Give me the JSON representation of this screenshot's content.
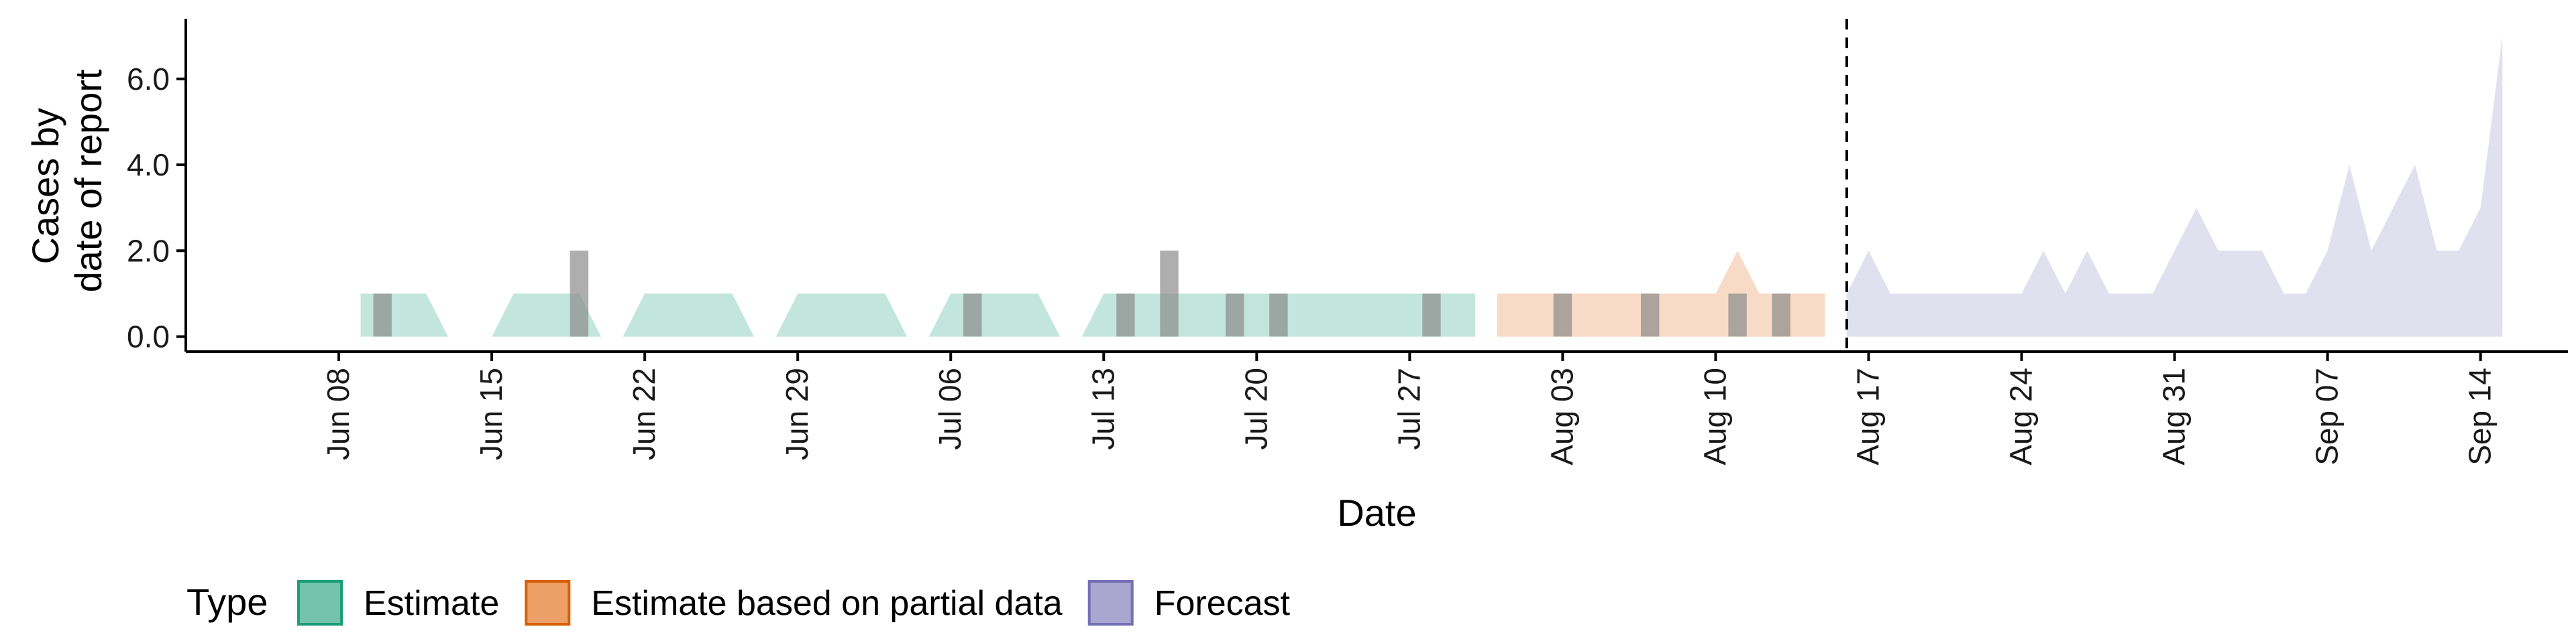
{
  "chart_data": {
    "type": "area",
    "xlabel": "Date",
    "ylabel_lines": [
      "Cases by",
      "date of report"
    ],
    "x_ticks": [
      "Jun 08",
      "Jun 15",
      "Jun 22",
      "Jun 29",
      "Jul 06",
      "Jul 13",
      "Jul 20",
      "Jul 27",
      "Aug 03",
      "Aug 10",
      "Aug 17",
      "Aug 24",
      "Aug 31",
      "Sep 07",
      "Sep 14"
    ],
    "x_range": [
      "2020-06-01",
      "2020-09-18"
    ],
    "y_ticks": [
      "0.0",
      "2.0",
      "4.0",
      "6.0"
    ],
    "ylim": [
      -0.35,
      7.4
    ],
    "forecast_start": "2020-08-16",
    "legend": {
      "title": "Type",
      "position": "bottom",
      "items": [
        {
          "label": "Estimate",
          "fill": "#74c4ac",
          "stroke": "#1b9e77"
        },
        {
          "label": "Estimate based on partial data",
          "fill": "#ec9f66",
          "stroke": "#d95f02"
        },
        {
          "label": "Forecast",
          "fill": "#a9a6d0",
          "stroke": "#7570b3"
        }
      ]
    },
    "series": [
      {
        "name": "Estimate",
        "color": "#b4e0d3",
        "points": [
          [
            "2020-06-09",
            0,
            1
          ],
          [
            "2020-06-10",
            0,
            1
          ],
          [
            "2020-06-11",
            0,
            1
          ],
          [
            "2020-06-12",
            0,
            1
          ],
          [
            "2020-06-13",
            0,
            0
          ],
          [
            "2020-06-14",
            0,
            0
          ],
          [
            "2020-06-15",
            0,
            0
          ],
          [
            "2020-06-16",
            0,
            1
          ],
          [
            "2020-06-17",
            0,
            1
          ],
          [
            "2020-06-18",
            0,
            1
          ],
          [
            "2020-06-19",
            0,
            1
          ],
          [
            "2020-06-20",
            0,
            0
          ],
          [
            "2020-06-21",
            0,
            0
          ],
          [
            "2020-06-22",
            0,
            1
          ],
          [
            "2020-06-23",
            0,
            1
          ],
          [
            "2020-06-24",
            0,
            1
          ],
          [
            "2020-06-25",
            0,
            1
          ],
          [
            "2020-06-26",
            0,
            1
          ],
          [
            "2020-06-27",
            0,
            0
          ],
          [
            "2020-06-28",
            0,
            0
          ],
          [
            "2020-06-29",
            0,
            1
          ],
          [
            "2020-06-30",
            0,
            1
          ],
          [
            "2020-07-01",
            0,
            1
          ],
          [
            "2020-07-02",
            0,
            1
          ],
          [
            "2020-07-03",
            0,
            1
          ],
          [
            "2020-07-04",
            0,
            0
          ],
          [
            "2020-07-05",
            0,
            0
          ],
          [
            "2020-07-06",
            0,
            1
          ],
          [
            "2020-07-07",
            0,
            1
          ],
          [
            "2020-07-08",
            0,
            1
          ],
          [
            "2020-07-09",
            0,
            1
          ],
          [
            "2020-07-10",
            0,
            1
          ],
          [
            "2020-07-11",
            0,
            0
          ],
          [
            "2020-07-12",
            0,
            0
          ],
          [
            "2020-07-13",
            0,
            1
          ],
          [
            "2020-07-14",
            0,
            1
          ],
          [
            "2020-07-15",
            0,
            1
          ],
          [
            "2020-07-16",
            0,
            1
          ],
          [
            "2020-07-17",
            0,
            1
          ],
          [
            "2020-07-18",
            0,
            1
          ],
          [
            "2020-07-19",
            0,
            1
          ],
          [
            "2020-07-20",
            0,
            1
          ],
          [
            "2020-07-21",
            0,
            1
          ],
          [
            "2020-07-22",
            0,
            1
          ],
          [
            "2020-07-23",
            0,
            1
          ],
          [
            "2020-07-24",
            0,
            1
          ],
          [
            "2020-07-25",
            0,
            1
          ],
          [
            "2020-07-26",
            0,
            1
          ],
          [
            "2020-07-27",
            0,
            1
          ],
          [
            "2020-07-28",
            0,
            1
          ],
          [
            "2020-07-29",
            0,
            1
          ],
          [
            "2020-07-30",
            0,
            1
          ]
        ]
      },
      {
        "name": "Estimate based on partial data",
        "color": "#f5d2b8",
        "points": [
          [
            "2020-07-31",
            0,
            1
          ],
          [
            "2020-08-01",
            0,
            1
          ],
          [
            "2020-08-02",
            0,
            1
          ],
          [
            "2020-08-03",
            0,
            1
          ],
          [
            "2020-08-04",
            0,
            1
          ],
          [
            "2020-08-05",
            0,
            1
          ],
          [
            "2020-08-06",
            0,
            1
          ],
          [
            "2020-08-07",
            0,
            1
          ],
          [
            "2020-08-08",
            0,
            1
          ],
          [
            "2020-08-09",
            0,
            1
          ],
          [
            "2020-08-10",
            0,
            1
          ],
          [
            "2020-08-11",
            0,
            2
          ],
          [
            "2020-08-12",
            0,
            1
          ],
          [
            "2020-08-13",
            0,
            1
          ],
          [
            "2020-08-14",
            0,
            1
          ],
          [
            "2020-08-15",
            0,
            1
          ]
        ]
      },
      {
        "name": "Forecast",
        "color": "#d9d8ea",
        "points": [
          [
            "2020-08-16",
            0,
            1
          ],
          [
            "2020-08-17",
            0,
            2
          ],
          [
            "2020-08-18",
            0,
            1
          ],
          [
            "2020-08-19",
            0,
            1
          ],
          [
            "2020-08-20",
            0,
            1
          ],
          [
            "2020-08-21",
            0,
            1
          ],
          [
            "2020-08-22",
            0,
            1
          ],
          [
            "2020-08-23",
            0,
            1
          ],
          [
            "2020-08-24",
            0,
            1
          ],
          [
            "2020-08-25",
            0,
            2
          ],
          [
            "2020-08-26",
            0,
            1
          ],
          [
            "2020-08-27",
            0,
            2
          ],
          [
            "2020-08-28",
            0,
            1
          ],
          [
            "2020-08-29",
            0,
            1
          ],
          [
            "2020-08-30",
            0,
            1
          ],
          [
            "2020-08-31",
            0,
            2
          ],
          [
            "2020-09-01",
            0,
            3
          ],
          [
            "2020-09-02",
            0,
            2
          ],
          [
            "2020-09-03",
            0,
            2
          ],
          [
            "2020-09-04",
            0,
            2
          ],
          [
            "2020-09-05",
            0,
            1
          ],
          [
            "2020-09-06",
            0,
            1
          ],
          [
            "2020-09-07",
            0,
            2
          ],
          [
            "2020-09-08",
            0,
            4
          ],
          [
            "2020-09-09",
            0,
            2
          ],
          [
            "2020-09-10",
            0,
            3
          ],
          [
            "2020-09-11",
            0,
            4
          ],
          [
            "2020-09-12",
            0,
            2
          ],
          [
            "2020-09-13",
            0,
            2
          ],
          [
            "2020-09-14",
            0,
            3
          ],
          [
            "2020-09-15",
            0,
            7
          ]
        ]
      }
    ],
    "reported_cases": {
      "color": "#8c8c8c",
      "bars": [
        [
          "2020-06-10",
          1
        ],
        [
          "2020-06-19",
          2
        ],
        [
          "2020-07-07",
          1
        ],
        [
          "2020-07-14",
          1
        ],
        [
          "2020-07-16",
          2
        ],
        [
          "2020-07-19",
          1
        ],
        [
          "2020-07-21",
          1
        ],
        [
          "2020-07-28",
          1
        ],
        [
          "2020-08-03",
          1
        ],
        [
          "2020-08-07",
          1
        ],
        [
          "2020-08-11",
          1
        ],
        [
          "2020-08-13",
          1
        ]
      ]
    }
  }
}
